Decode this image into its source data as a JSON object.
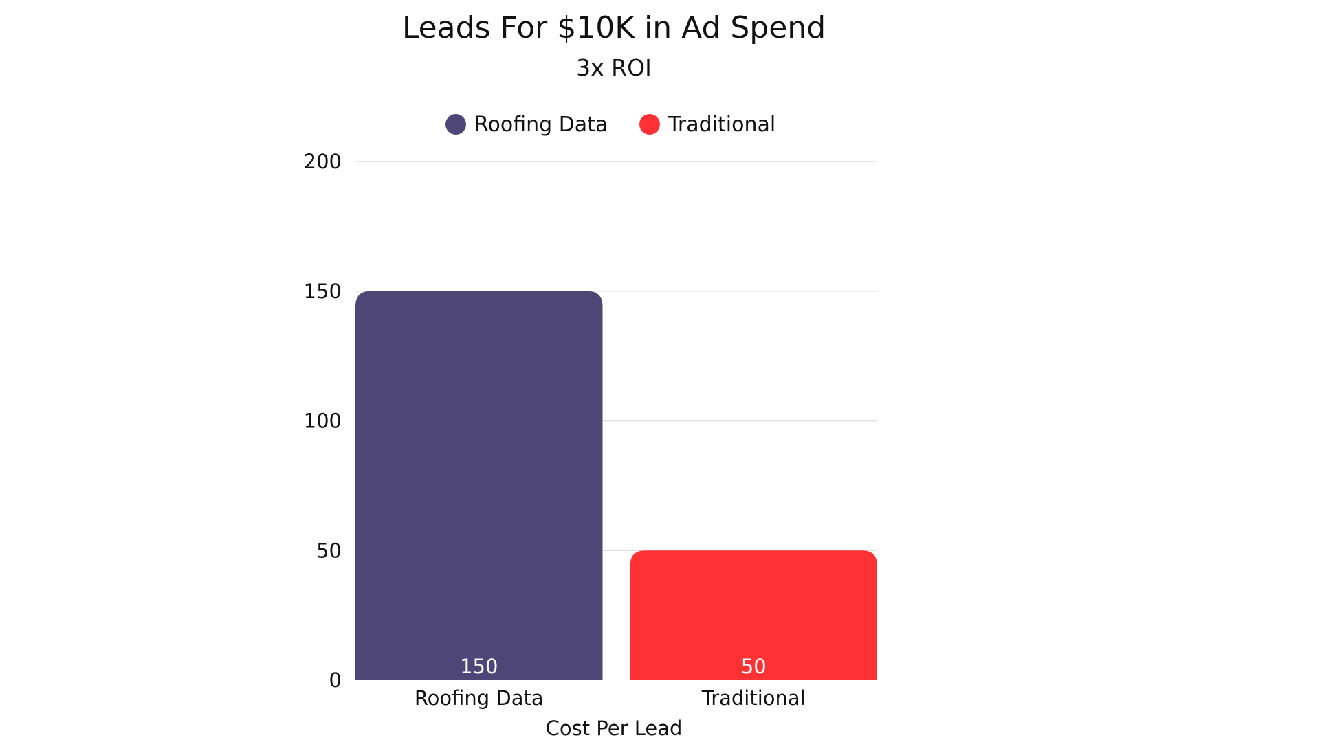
{
  "chart_data": {
    "type": "bar",
    "title": "Leads For $10K in Ad Spend",
    "subtitle": "3x ROI",
    "xlabel": "Cost Per Lead",
    "ylabel": "",
    "categories": [
      "Roofing Data",
      "Traditional"
    ],
    "values": [
      150,
      50
    ],
    "data_labels": [
      "150",
      "50"
    ],
    "colors": [
      "#4e4677",
      "#fe3234"
    ],
    "ylim": [
      0,
      200
    ],
    "yticks": [
      0,
      50,
      100,
      150,
      200
    ],
    "ytick_labels": [
      "0",
      "50",
      "100",
      "150",
      "200"
    ],
    "legend": {
      "position": "top-center",
      "entries": [
        {
          "label": "Roofing Data",
          "color": "#4e4677"
        },
        {
          "label": "Traditional",
          "color": "#fe3234"
        }
      ]
    },
    "grid": true
  }
}
